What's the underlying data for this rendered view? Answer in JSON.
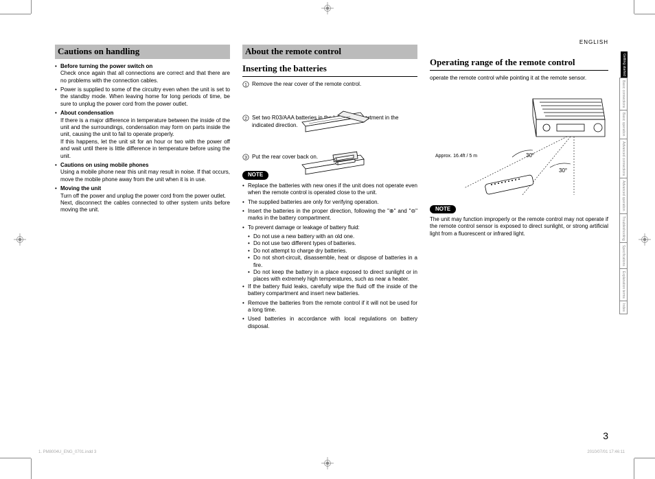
{
  "lang": "ENGLISH",
  "pageNumber": "3",
  "footerFile": "1. PM8004U_ENG_0701.indd   3",
  "footerDate": "2010/07/01   17:46:11",
  "sideBlackTab": "Getting started",
  "sideTabs": [
    "Basic connections",
    "Basic operation",
    "Advanced connections",
    "Advanced operation",
    "Troubleshooting",
    "Specifications",
    "Explanation terms",
    "Index"
  ],
  "col1": {
    "heading": "Cautions on handling",
    "items": [
      {
        "bold": "Before turning the power switch on",
        "lines": [
          "Check once again that all connections are correct and that there are no problems with the connection cables."
        ]
      },
      {
        "lines": [
          "Power is supplied to some of the circuitry even when the unit is set to the standby mode. When leaving home for long periods of time, be sure to unplug the power cord from the power outlet."
        ]
      },
      {
        "bold": "About condensation",
        "lines": [
          "If there is a major difference in temperature between the inside of the unit and the surroundings, condensation may form on parts inside the unit, causing the unit to fail to operate properly.",
          "If this happens, let the unit sit for an hour or two with the power off and wait until there is little difference in temperature before using the unit."
        ]
      },
      {
        "bold": "Cautions on using mobile phones",
        "lines": [
          "Using a mobile phone near this unit may result in noise. If that occurs, move the mobile phone away from the unit when it is in use."
        ]
      },
      {
        "bold": "Moving the unit",
        "lines": [
          "Turn off the power and unplug the power cord from the power outlet.",
          "Next, disconnect the cables connected to other system units before moving the unit."
        ]
      }
    ]
  },
  "col2": {
    "heading": "About the remote control",
    "sub1": "Inserting the batteries",
    "steps": [
      "Remove the rear cover of the remote control.",
      "Set two R03/AAA batteries in the battery compartment in the indicated direction.",
      "Put the rear cover back on."
    ],
    "noteLabel": "NOTE",
    "notes": [
      "Replace the batteries with new ones if the unit does not operate even when the remote control is operated close to the unit.",
      "The supplied batteries are only for verifying operation.",
      "Insert the batteries in the proper direction, following the \"⊕\" and \"⊖\" marks in the battery compartment.",
      "To prevent damage or leakage of battery fluid:"
    ],
    "subNotes": [
      "Do not use a new battery with an old one.",
      "Do not use two different types of batteries.",
      "Do not attempt to charge dry batteries.",
      "Do not short-circuit, disassemble, heat or dispose of batteries in a fire.",
      "Do not keep the battery in a place exposed to direct sunlight or in places with extremely high temperatures, such as near a heater."
    ],
    "notes2": [
      "If the battery fluid leaks, carefully wipe the fluid off the inside of the battery compartment and insert new batteries.",
      "Remove the batteries from the remote control if it will not be used for a long time.",
      "Used batteries in accordance with local regulations on battery disposal."
    ]
  },
  "col3": {
    "sub": "Operating range of the remote control",
    "intro": "operate the remote control while pointing it at the remote sensor.",
    "approx": "Approx. 16.4ft / 5 m",
    "angle1": "30°",
    "angle2": "30°",
    "noteLabel": "NOTE",
    "noteText": "The unit may function improperly or the remote control may not operate if the remote control sensor is exposed to direct sunlight, or strong artificial light from a fluorescent or infrared light."
  }
}
